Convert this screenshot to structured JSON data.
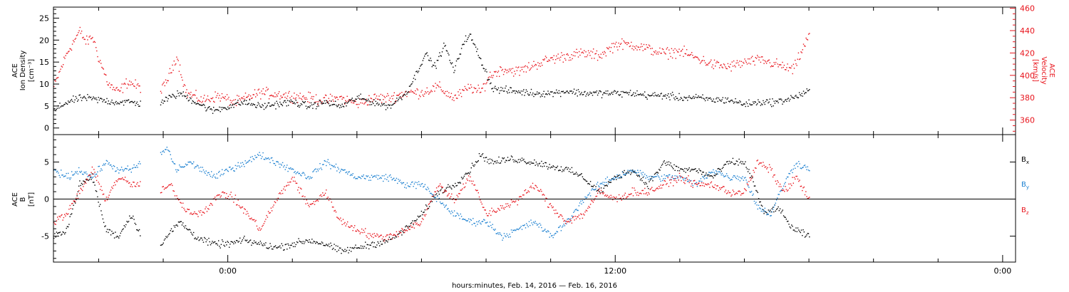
{
  "colors": {
    "black": "#000000",
    "red": "#e8141c",
    "blue": "#1a7fd0"
  },
  "xaxis": {
    "title": "hours:minutes, Feb. 14, 2016 — Feb. 16, 2016",
    "range_hours": [
      -5.4,
      24.4
    ],
    "ticks": [
      {
        "h": 0,
        "label": "0:00"
      },
      {
        "h": 12,
        "label": "12:00"
      },
      {
        "h": 24,
        "label": "0:00"
      }
    ],
    "minor_step_hours": 2
  },
  "panels": {
    "top": {
      "ylabel_left": {
        "line1": "ACE",
        "line2": "Ion Density",
        "line3": "[cm⁻³]"
      },
      "ylabel_right": {
        "line1": "ACE",
        "line2": "Velocity",
        "line3": "[km/s]"
      },
      "yleft_range": [
        -1.5,
        27.5
      ],
      "yleft_ticks": [
        "0",
        "5",
        "10",
        "15",
        "20",
        "25"
      ],
      "yright_range": [
        347,
        461
      ],
      "yright_ticks": [
        "360",
        "380",
        "400",
        "420",
        "440",
        "460"
      ]
    },
    "bottom": {
      "ylabel": {
        "line1": "ACE",
        "line2": "B",
        "line3": "[nT]"
      },
      "yrange": [
        -8.5,
        8.7
      ],
      "yticks": [
        "-5",
        "0",
        "5"
      ],
      "legend": [
        {
          "label": "Bx",
          "color": "#000000"
        },
        {
          "label": "By",
          "color": "#1a7fd0"
        },
        {
          "label": "Bz",
          "color": "#e8141c"
        }
      ]
    }
  },
  "chart_data": [
    {
      "type": "scatter",
      "panel": "top",
      "x_unit": "hours relative to 0:00 (Feb. 15, 2016)",
      "gaps_hours": [
        [
          -2.7,
          -2.1
        ],
        [
          18.1,
          24.4
        ]
      ],
      "series": [
        {
          "name": "Ion Density",
          "axis": "left",
          "color": "#000000",
          "unit": "cm⁻³",
          "x": [
            -5.4,
            -5.0,
            -4.5,
            -4.0,
            -3.5,
            -3.0,
            -2.7,
            -2.1,
            -1.5,
            -1.0,
            -0.5,
            0.0,
            0.5,
            1.0,
            1.5,
            2.0,
            2.5,
            3.0,
            3.5,
            4.0,
            4.5,
            5.0,
            5.5,
            5.8,
            6.1,
            6.4,
            6.7,
            7.0,
            7.3,
            7.5,
            7.8,
            8.2,
            8.8,
            9.5,
            10.0,
            10.5,
            11.0,
            11.5,
            12.0,
            12.5,
            13.0,
            13.5,
            14.0,
            14.5,
            15.0,
            15.5,
            16.0,
            16.5,
            17.0,
            17.5,
            18.0
          ],
          "y": [
            4,
            6,
            7,
            6.5,
            6,
            6,
            5.5,
            6,
            8,
            6,
            4,
            5,
            6,
            5,
            5.5,
            6,
            5,
            6,
            5,
            7,
            6,
            5,
            8,
            12,
            17,
            14,
            19,
            13,
            20,
            21,
            16,
            9,
            8.5,
            8,
            8,
            8.5,
            8,
            8,
            8,
            8,
            7.5,
            7.5,
            7,
            7,
            6.5,
            6.5,
            5.5,
            6,
            6,
            7,
            8.5
          ]
        },
        {
          "name": "Velocity",
          "axis": "right",
          "color": "#e8141c",
          "unit": "km/s",
          "x": [
            -5.4,
            -5.0,
            -4.6,
            -4.4,
            -4.2,
            -4.0,
            -3.7,
            -3.4,
            -3.1,
            -2.8,
            -2.7,
            -2.1,
            -2.0,
            -1.8,
            -1.6,
            -1.3,
            -0.8,
            -0.3,
            0.2,
            1.0,
            2.0,
            3.0,
            3.5,
            4.0,
            4.5,
            5.0,
            5.5,
            6.0,
            6.5,
            7.0,
            7.5,
            7.8,
            8.1,
            8.5,
            9.0,
            9.5,
            10.0,
            10.5,
            11.0,
            11.5,
            12.0,
            12.5,
            13.0,
            13.5,
            14.0,
            14.5,
            15.0,
            15.5,
            16.0,
            16.5,
            17.0,
            17.5,
            18.0
          ],
          "y": [
            390,
            420,
            440,
            430,
            435,
            415,
            392,
            385,
            395,
            390,
            390,
            385,
            390,
            402,
            418,
            385,
            378,
            382,
            376,
            385,
            382,
            378,
            380,
            375,
            380,
            380,
            385,
            385,
            390,
            380,
            390,
            385,
            400,
            406,
            404,
            410,
            415,
            418,
            420,
            418,
            428,
            428,
            424,
            420,
            422,
            416,
            410,
            408,
            412,
            414,
            410,
            405,
            437
          ]
        }
      ]
    },
    {
      "type": "scatter",
      "panel": "bottom",
      "x_unit": "hours relative to 0:00 (Feb. 15, 2016)",
      "gaps_hours": [
        [
          -2.7,
          -2.1
        ],
        [
          18.1,
          24.4
        ]
      ],
      "series": [
        {
          "name": "Bx",
          "color": "#000000",
          "unit": "nT",
          "x": [
            -5.4,
            -5.0,
            -4.6,
            -4.2,
            -3.8,
            -3.4,
            -3.0,
            -2.7,
            -2.1,
            -1.5,
            -1.0,
            -0.5,
            0.0,
            0.5,
            1.0,
            1.5,
            2.0,
            2.5,
            3.0,
            3.5,
            4.0,
            4.5,
            5.0,
            5.5,
            6.0,
            6.5,
            7.0,
            7.5,
            7.8,
            8.2,
            8.8,
            9.5,
            10.0,
            10.5,
            11.0,
            11.5,
            12.0,
            12.5,
            13.0,
            13.5,
            14.0,
            14.5,
            15.0,
            15.5,
            16.0,
            16.3,
            16.6,
            17.0,
            17.5,
            18.0
          ],
          "y": [
            -5,
            -4,
            2,
            3,
            -4,
            -5,
            -2,
            -5,
            -6,
            -3,
            -5,
            -6,
            -6,
            -5.5,
            -6,
            -6.5,
            -6,
            -5.5,
            -6,
            -7,
            -6.5,
            -6,
            -5.5,
            -4,
            -2,
            1,
            2,
            4,
            6,
            5,
            5.5,
            5,
            4.5,
            4,
            3,
            1,
            3,
            4,
            2,
            5,
            4,
            4,
            3,
            5,
            5,
            2,
            -2,
            -1,
            -4,
            -5
          ]
        },
        {
          "name": "By",
          "color": "#1a7fd0",
          "unit": "nT",
          "x": [
            -5.4,
            -5.0,
            -4.6,
            -4.2,
            -3.8,
            -3.4,
            -3.0,
            -2.7,
            -2.1,
            -1.9,
            -1.6,
            -1.2,
            -0.8,
            -0.4,
            0.0,
            0.5,
            1.0,
            1.5,
            2.0,
            2.5,
            3.0,
            3.5,
            4.0,
            4.5,
            5.0,
            5.5,
            6.0,
            6.5,
            7.0,
            7.5,
            8.0,
            8.5,
            9.0,
            9.5,
            10.0,
            10.5,
            11.0,
            11.5,
            12.0,
            12.5,
            13.0,
            13.5,
            14.0,
            14.5,
            15.0,
            15.5,
            16.0,
            16.4,
            16.8,
            17.2,
            17.6,
            18.0
          ],
          "y": [
            4,
            3,
            4,
            3,
            5,
            4,
            4,
            5,
            6,
            7,
            4,
            5,
            4,
            3,
            4,
            5,
            6,
            5,
            4,
            3,
            5,
            4,
            3,
            3,
            3,
            2,
            2,
            0,
            -2,
            -3,
            -3,
            -5,
            -4,
            -3,
            -5,
            -3,
            0,
            2,
            3,
            4,
            3,
            3,
            3,
            2,
            4,
            3,
            3,
            -1,
            -2,
            2,
            5,
            4
          ]
        },
        {
          "name": "Bz",
          "color": "#e8141c",
          "unit": "nT",
          "x": [
            -5.4,
            -5.0,
            -4.6,
            -4.2,
            -3.8,
            -3.4,
            -3.0,
            -2.7,
            -2.1,
            -1.8,
            -1.4,
            -1.0,
            -0.6,
            -0.2,
            0.2,
            0.6,
            1.0,
            1.5,
            2.0,
            2.5,
            3.0,
            3.5,
            4.0,
            4.5,
            5.0,
            5.5,
            6.0,
            6.5,
            7.0,
            7.5,
            8.0,
            8.5,
            9.0,
            9.5,
            10.0,
            10.5,
            11.0,
            11.5,
            12.0,
            12.5,
            13.0,
            13.5,
            14.0,
            14.5,
            15.0,
            15.5,
            16.0,
            16.4,
            16.8,
            17.2,
            17.6,
            18.0
          ],
          "y": [
            -3,
            -2,
            1,
            4,
            0,
            3,
            2,
            2,
            1,
            2,
            -1,
            -2,
            -1,
            1,
            0,
            -2,
            -4,
            0,
            3,
            -1,
            1,
            -3,
            -4,
            -5,
            -5,
            -4,
            -3,
            2,
            0,
            3,
            -2,
            -1,
            0,
            2,
            -1,
            -3,
            -2,
            1,
            0,
            1,
            1,
            2,
            3,
            2,
            2,
            1,
            1,
            5,
            4,
            1,
            3,
            0
          ]
        }
      ]
    }
  ]
}
